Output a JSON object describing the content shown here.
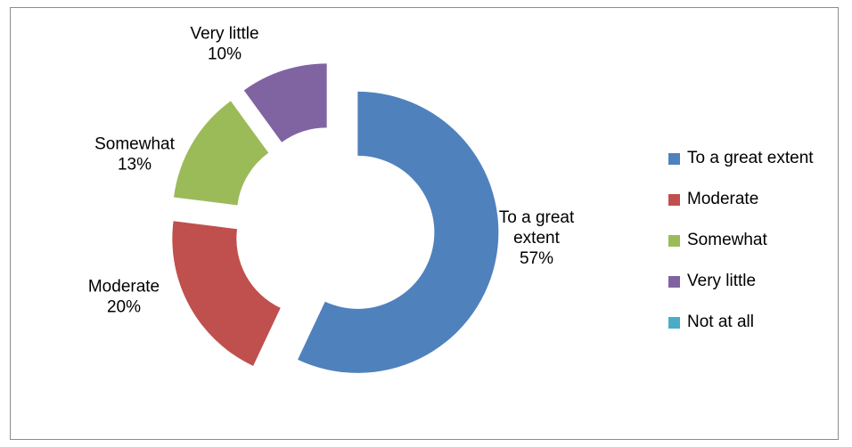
{
  "chart_data": {
    "type": "pie",
    "style": "donut-exploded",
    "legend_position": "right",
    "title": "",
    "series": [
      {
        "name": "To a great extent",
        "value": 57,
        "label_line1": "To a great",
        "label_line2": "extent",
        "label_pct": "57%",
        "color": "#4F81BD"
      },
      {
        "name": "Moderate",
        "value": 20,
        "label_line1": "Moderate",
        "label_line2": "",
        "label_pct": "20%",
        "color": "#C0504D"
      },
      {
        "name": "Somewhat",
        "value": 13,
        "label_line1": "Somewhat",
        "label_line2": "",
        "label_pct": "13%",
        "color": "#9BBB59"
      },
      {
        "name": "Very little",
        "value": 10,
        "label_line1": "Very little",
        "label_line2": "",
        "label_pct": "10%",
        "color": "#8064A2"
      },
      {
        "name": "Not at all",
        "value": 0,
        "label_line1": "",
        "label_line2": "",
        "label_pct": "",
        "color": "#4BACC6"
      }
    ]
  }
}
